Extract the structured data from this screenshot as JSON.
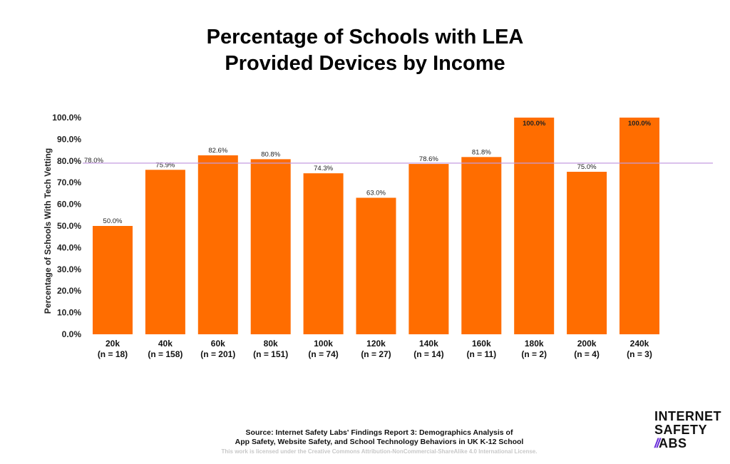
{
  "title_lines": [
    "Percentage of Schools with LEA",
    "Provided Devices by Income"
  ],
  "chart_data": {
    "type": "bar",
    "title": "Percentage of Schools with LEA Provided Devices by Income",
    "xlabel": "",
    "ylabel": "Percentage of Schools With Tech Vetting",
    "ylim": [
      0,
      100
    ],
    "yticks": [
      0,
      10,
      20,
      30,
      40,
      50,
      60,
      70,
      80,
      90,
      100
    ],
    "ytick_labels": [
      "0.0%",
      "10.0%",
      "20.0%",
      "30.0%",
      "40.0%",
      "50.0%",
      "60.0%",
      "70.0%",
      "80.0%",
      "90.0%",
      "100.0%"
    ],
    "categories": [
      "20k",
      "40k",
      "60k",
      "80k",
      "100k",
      "120k",
      "140k",
      "160k",
      "180k",
      "200k",
      "240k"
    ],
    "sample_sizes": [
      "(n = 18)",
      "(n = 158)",
      "(n = 201)",
      "(n = 151)",
      "(n = 74)",
      "(n = 27)",
      "(n = 14)",
      "(n = 11)",
      "(n = 2)",
      "(n = 4)",
      "(n = 3)"
    ],
    "values": [
      50.0,
      75.9,
      82.6,
      80.8,
      74.3,
      63.0,
      78.6,
      81.8,
      100.0,
      75.0,
      100.0
    ],
    "value_labels": [
      "50.0%",
      "75.9%",
      "82.6%",
      "80.8%",
      "74.3%",
      "63.0%",
      "78.6%",
      "81.8%",
      "100.0%",
      "75.0%",
      "100.0%"
    ],
    "reference_line": {
      "value": 78.0,
      "label": "78.0%",
      "color": "#c49be0"
    },
    "bar_color": "#ff6d00",
    "grid": false,
    "legend": "none"
  },
  "footer": {
    "source_line1": "Source: Internet Safety Labs' Findings Report 3: Demographics Analysis of",
    "source_line2": "App Safety, Website Safety, and School Technology Behaviors in UK K-12 School",
    "license": "This work is licensed under the Creative Commons Attribution-NonCommercial-ShareAlike 4.0 International License."
  },
  "logo": {
    "line1": "INTERNET",
    "line2": "SAFETY",
    "line3_mark": "//",
    "line3_text": "ABS"
  }
}
